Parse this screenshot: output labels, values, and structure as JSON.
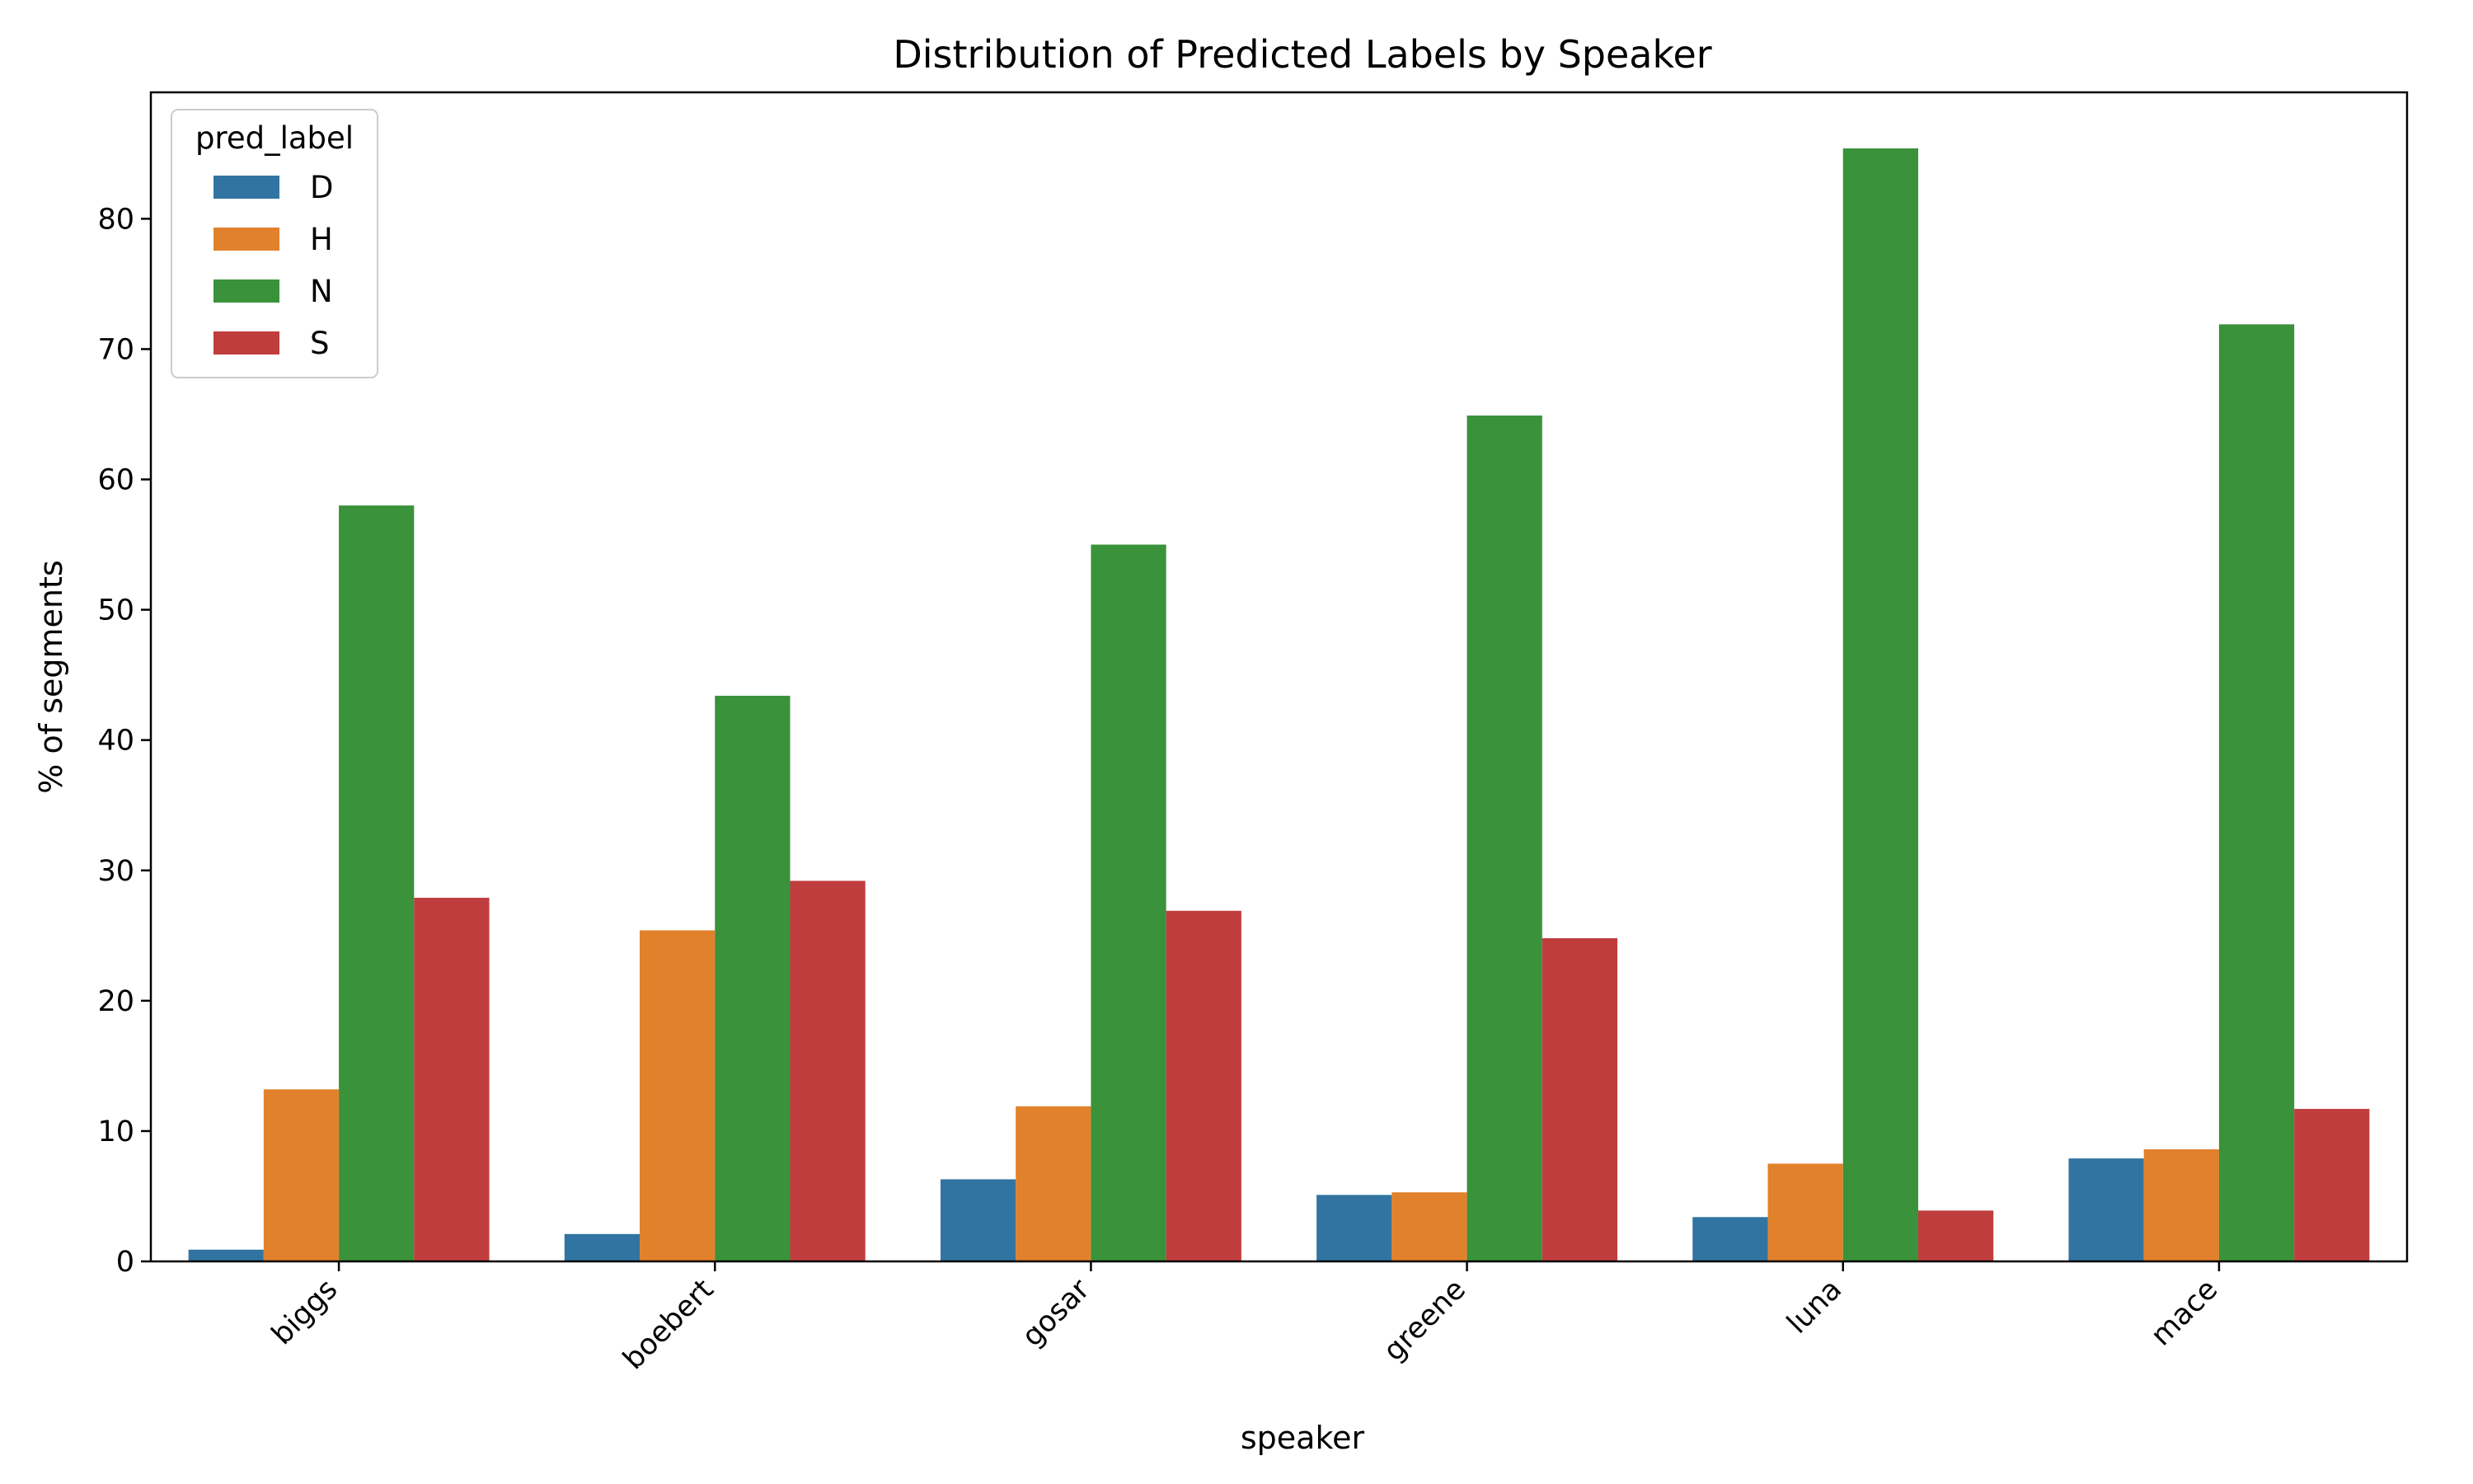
{
  "chart_data": {
    "type": "bar",
    "title": "Distribution of Predicted Labels by Speaker",
    "xlabel": "speaker",
    "ylabel": "% of segments",
    "categories": [
      "biggs",
      "boebert",
      "gosar",
      "greene",
      "luna",
      "mace"
    ],
    "series": [
      {
        "name": "D",
        "color": "#3274a1",
        "values": [
          0.9,
          2.1,
          6.3,
          5.1,
          3.4,
          7.9
        ]
      },
      {
        "name": "H",
        "color": "#e1812c",
        "values": [
          13.2,
          25.4,
          11.9,
          5.3,
          7.5,
          8.6
        ]
      },
      {
        "name": "N",
        "color": "#3a923a",
        "values": [
          58.0,
          43.4,
          55.0,
          64.9,
          85.4,
          71.9
        ]
      },
      {
        "name": "S",
        "color": "#c03d3e",
        "values": [
          27.9,
          29.2,
          26.9,
          24.8,
          3.9,
          11.7
        ]
      }
    ],
    "ylim": [
      0,
      89.7
    ],
    "yticks": [
      0,
      10,
      20,
      30,
      40,
      50,
      60,
      70,
      80
    ],
    "legend_title": "pred_label",
    "legend_position": "upper-left",
    "grid": false
  }
}
